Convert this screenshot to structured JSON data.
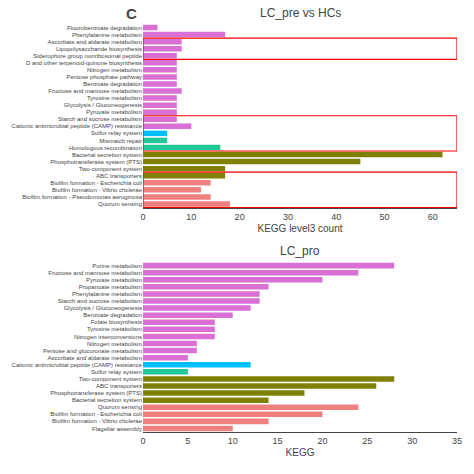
{
  "chart_data": [
    {
      "type": "bar",
      "orientation": "horizontal",
      "title": "LC_pre vs HCs",
      "xlabel": "KEGG level3 count",
      "categories": [
        "Fluorobenzoate degradation",
        "Phenylalanine metabolism",
        "Ascorbate and aldarate metabolism",
        "Lipopolysaccharide biosynthesis",
        "Siderophore group nonribosomal peptide",
        "D and other terpenoid-quinone biosynthesis",
        "Nitrogen metabolism",
        "Pentose phosphate pathway",
        "Benzoate degradation",
        "Fructose and mannose metabolism",
        "Tyrosine metabolism",
        "Glycolysis / Gluconeogenesis",
        "Pyruvate metabolism",
        "Starch and sucrose metabolism",
        "Cationic antimicrobial peptide (CAMP) resistance",
        "Sulfur relay system",
        "Mismatch repair",
        "Homologous recombination",
        "Bacterial secretion system",
        "Phosphotransferase system (PTS)",
        "Two-component system",
        "ABC transporters",
        "Biofilm formation - Escherichia coli",
        "Biofilm formation - Vibrio cholerae",
        "Biofilm formation - Pseudomonas aeruginosa",
        "Quorum sensing"
      ],
      "values": [
        3,
        17,
        8,
        8,
        7,
        7,
        7,
        7,
        7,
        8,
        7,
        7,
        7,
        7,
        10,
        5,
        5,
        16,
        62,
        45,
        17,
        17,
        14,
        12,
        14,
        18
      ],
      "colors": [
        "#da70d6",
        "#da70d6",
        "#da70d6",
        "#da70d6",
        "#da70d6",
        "#da70d6",
        "#da70d6",
        "#da70d6",
        "#da70d6",
        "#da70d6",
        "#da70d6",
        "#da70d6",
        "#da70d6",
        "#da70d6",
        "#da70d6",
        "#00bfff",
        "#20c997",
        "#20c997",
        "#808000",
        "#808000",
        "#808000",
        "#808000",
        "#f08080",
        "#f08080",
        "#f08080",
        "#f08080"
      ],
      "xlim": [
        0,
        65
      ],
      "xticks": [
        0,
        10,
        20,
        30,
        40,
        50,
        60
      ],
      "grid": false,
      "annotations": [
        {
          "text": "C"
        }
      ],
      "highlight_boxes": [
        [
          2,
          4
        ],
        [
          13,
          17
        ],
        [
          21,
          25
        ]
      ],
      "highlight_color": "#ff0000"
    },
    {
      "type": "bar",
      "orientation": "horizontal",
      "title": "LC_pro",
      "xlabel": "KEGG",
      "categories": [
        "Purine metabolism",
        "Fructose and mannose metabolism",
        "Pyruvate metabolism",
        "Propanoate metabolism",
        "Phenylalanine metabolism",
        "Starch and sucrose metabolism",
        "Glycolysis / Gluconeogenesis",
        "Benzoate degradation",
        "Folate biosynthesis",
        "Tyrosine metabolism",
        "Nitrogen interconversions",
        "Nitrogen metabolism",
        "Pentose and glucuronate metabolism",
        "Ascorbate and aldarate metabolism",
        "Cationic antimicrobial peptide (CAMP) resistance",
        "Sulfur relay system",
        "Two-component system",
        "ABC transporters",
        "Phosphotransferase system (PTS)",
        "Bacterial secretion system",
        "Quorum sensing",
        "Biofilm formation - Escherichia coli",
        "Biofilm formation - Vibrio cholerae",
        "Flagellar assembly"
      ],
      "values": [
        28,
        24,
        20,
        14,
        13,
        13,
        12,
        10,
        8,
        8,
        8,
        6,
        6,
        5,
        12,
        5,
        28,
        26,
        18,
        14,
        24,
        20,
        14,
        10
      ],
      "colors": [
        "#da70d6",
        "#da70d6",
        "#da70d6",
        "#da70d6",
        "#da70d6",
        "#da70d6",
        "#da70d6",
        "#da70d6",
        "#da70d6",
        "#da70d6",
        "#da70d6",
        "#da70d6",
        "#da70d6",
        "#da70d6",
        "#00bfff",
        "#20c997",
        "#808000",
        "#808000",
        "#808000",
        "#808000",
        "#f08080",
        "#f08080",
        "#f08080",
        "#f08080"
      ],
      "xlim": [
        0,
        35
      ],
      "xticks": [
        0,
        5,
        10,
        15,
        20,
        25,
        30,
        35
      ],
      "grid": false
    }
  ]
}
